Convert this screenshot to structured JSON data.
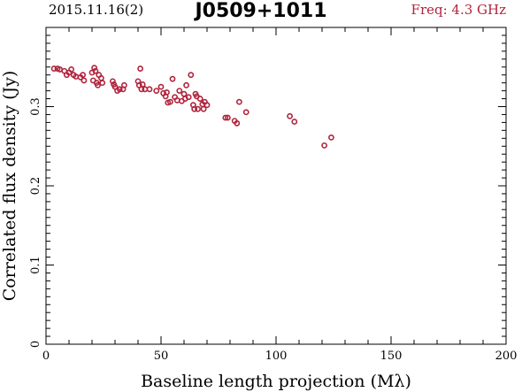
{
  "header": {
    "date": "2015.11.16(2)",
    "source": "J0509+1011",
    "freq": "Freq: 4.3 GHz"
  },
  "chart_data": {
    "type": "scatter",
    "title": "J0509+1011",
    "xlabel": "Baseline length projection (Mλ)",
    "ylabel": "Correlated flux density (Jy)",
    "xlim": [
      0,
      200
    ],
    "ylim": [
      0,
      0.4
    ],
    "xticks": [
      0,
      50,
      100,
      150,
      200
    ],
    "xtick_labels": [
      "0",
      "50",
      "100",
      "150",
      "200"
    ],
    "yticks": [
      0,
      0.1,
      0.2,
      0.3
    ],
    "ytick_labels": [
      "0",
      "0.1",
      "0.2",
      "0.3"
    ],
    "grid": false,
    "marker_color": "#b0243c",
    "series": [
      {
        "points": [
          [
            3.5,
            0.348
          ],
          [
            5,
            0.348
          ],
          [
            6,
            0.347
          ],
          [
            8,
            0.345
          ],
          [
            9,
            0.34
          ],
          [
            10,
            0.343
          ],
          [
            11,
            0.347
          ],
          [
            12,
            0.34
          ],
          [
            13,
            0.338
          ],
          [
            15,
            0.337
          ],
          [
            16,
            0.34
          ],
          [
            16.5,
            0.333
          ],
          [
            20,
            0.343
          ],
          [
            20.5,
            0.333
          ],
          [
            21,
            0.349
          ],
          [
            21.5,
            0.345
          ],
          [
            22,
            0.33
          ],
          [
            22.5,
            0.327
          ],
          [
            23,
            0.34
          ],
          [
            24,
            0.336
          ],
          [
            24.5,
            0.33
          ],
          [
            29,
            0.332
          ],
          [
            29.5,
            0.328
          ],
          [
            30,
            0.325
          ],
          [
            31,
            0.32
          ],
          [
            32,
            0.322
          ],
          [
            33.5,
            0.322
          ],
          [
            34,
            0.327
          ],
          [
            40,
            0.332
          ],
          [
            40.5,
            0.327
          ],
          [
            41,
            0.348
          ],
          [
            41.5,
            0.322
          ],
          [
            42,
            0.328
          ],
          [
            43,
            0.322
          ],
          [
            45,
            0.322
          ],
          [
            48,
            0.32
          ],
          [
            50,
            0.325
          ],
          [
            51,
            0.317
          ],
          [
            52,
            0.313
          ],
          [
            52.5,
            0.318
          ],
          [
            53,
            0.305
          ],
          [
            54,
            0.306
          ],
          [
            55,
            0.335
          ],
          [
            56,
            0.312
          ],
          [
            57,
            0.308
          ],
          [
            58,
            0.32
          ],
          [
            59,
            0.307
          ],
          [
            60,
            0.316
          ],
          [
            60.5,
            0.31
          ],
          [
            61,
            0.327
          ],
          [
            62,
            0.312
          ],
          [
            63,
            0.34
          ],
          [
            64,
            0.302
          ],
          [
            64.5,
            0.297
          ],
          [
            65,
            0.316
          ],
          [
            65.5,
            0.313
          ],
          [
            66,
            0.297
          ],
          [
            67,
            0.31
          ],
          [
            68,
            0.303
          ],
          [
            68.5,
            0.297
          ],
          [
            69,
            0.306
          ],
          [
            70,
            0.302
          ],
          [
            78,
            0.286
          ],
          [
            79,
            0.286
          ],
          [
            82,
            0.282
          ],
          [
            83,
            0.279
          ],
          [
            84,
            0.306
          ],
          [
            87,
            0.293
          ],
          [
            106,
            0.288
          ],
          [
            108,
            0.281
          ],
          [
            121,
            0.251
          ],
          [
            124,
            0.261
          ]
        ]
      }
    ]
  }
}
